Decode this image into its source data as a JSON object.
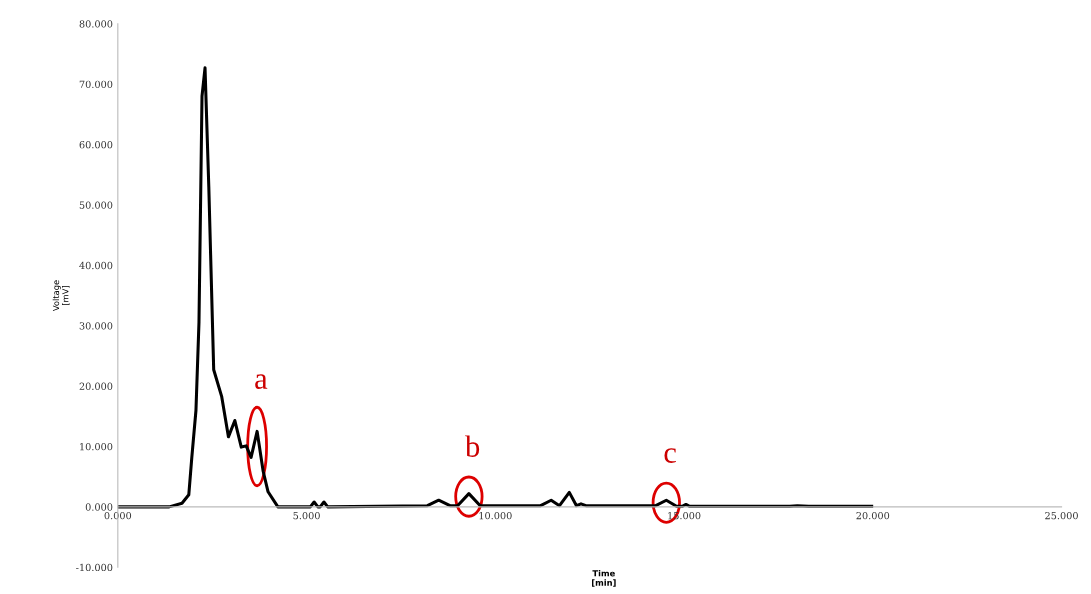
{
  "chart_data": {
    "type": "line",
    "xlabel": "Time\n[min]",
    "ylabel": "Voltage\n[mV]",
    "xlim": [
      0,
      25
    ],
    "ylim": [
      -10,
      80
    ],
    "xticks": [
      {
        "value": 0,
        "label": "0.000"
      },
      {
        "value": 5,
        "label": "5.000"
      },
      {
        "value": 10,
        "label": "10.000"
      },
      {
        "value": 15,
        "label": "15.000"
      },
      {
        "value": 20,
        "label": "20.000"
      },
      {
        "value": 25,
        "label": "25.000"
      }
    ],
    "yticks": [
      {
        "value": -10,
        "label": "-10.000"
      },
      {
        "value": 0,
        "label": "0.000"
      },
      {
        "value": 10,
        "label": "10.000"
      },
      {
        "value": 20,
        "label": "20.000"
      },
      {
        "value": 30,
        "label": "30.000"
      },
      {
        "value": 40,
        "label": "40.000"
      },
      {
        "value": 50,
        "label": "50.000"
      },
      {
        "value": 60,
        "label": "60.000"
      },
      {
        "value": 70,
        "label": "70.000"
      },
      {
        "value": 80,
        "label": "80.000"
      }
    ],
    "grid": false,
    "legend": false,
    "marker": "none",
    "line_style": "solid",
    "series": [
      {
        "color": "#000000",
        "x": [
          0,
          1.36,
          1.7,
          1.88,
          1.96,
          2.07,
          2.15,
          2.23,
          2.31,
          2.41,
          2.54,
          2.75,
          2.93,
          3.1,
          3.27,
          3.4,
          3.53,
          3.69,
          3.85,
          3.98,
          4.24,
          5.0,
          5.1,
          5.2,
          5.3,
          5.36,
          5.46,
          5.56,
          8.2,
          8.5,
          8.8,
          9.0,
          9.3,
          9.6,
          11.2,
          11.48,
          11.7,
          11.96,
          12.15,
          12.27,
          12.4,
          14.25,
          14.53,
          14.8,
          14.95,
          15.05,
          15.15,
          17.8,
          18.0,
          18.3,
          19.97
        ],
        "values": [
          0,
          0,
          0.6,
          2,
          8.2,
          16,
          30.6,
          68,
          72.7,
          53,
          22.7,
          18.3,
          11.6,
          14.3,
          9.9,
          10.1,
          8.2,
          12.5,
          5.9,
          2.5,
          0,
          0,
          0,
          0.8,
          0,
          0,
          0.8,
          0,
          0.2,
          1.1,
          0.2,
          0.2,
          2.2,
          0.2,
          0.2,
          1.1,
          0.2,
          2.4,
          0.2,
          0.5,
          0.2,
          0.2,
          1.1,
          0.1,
          0.1,
          0.4,
          0.1,
          0.1,
          0.2,
          0.1,
          0.1
        ]
      }
    ],
    "annotations": [
      {
        "text": "a",
        "x": 3.69,
        "y": 10
      },
      {
        "text": "b",
        "x": 9.3,
        "y": 2
      },
      {
        "text": "c",
        "x": 14.53,
        "y": 1
      }
    ]
  }
}
